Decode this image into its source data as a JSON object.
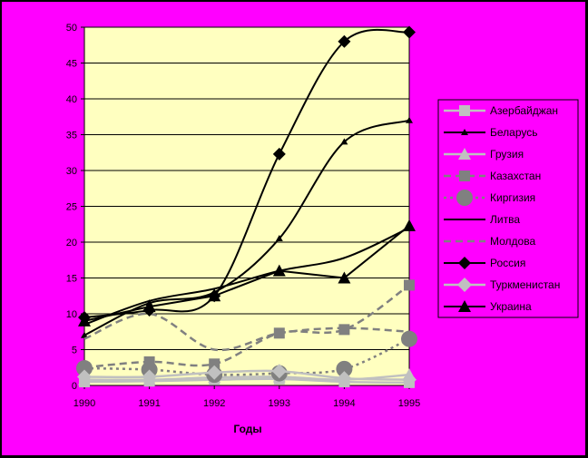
{
  "chart_data": {
    "type": "line",
    "title": "",
    "xlabel": "Годы",
    "ylabel": "",
    "ylim": [
      0,
      50
    ],
    "yticks": [
      0,
      5,
      10,
      15,
      20,
      25,
      30,
      35,
      40,
      45,
      50
    ],
    "categories": [
      "1990",
      "1991",
      "1992",
      "1993",
      "1994",
      "1995"
    ],
    "grid": "horizontal",
    "legend_position": "right",
    "plot_background": "#ffffc0",
    "page_background": "#ff00ff",
    "series": [
      {
        "name": "Азербайджан",
        "values": [
          0.5,
          0.6,
          0.8,
          0.9,
          0.5,
          0.4
        ],
        "color": "#c0c0c0",
        "dash": "solid",
        "marker": "square",
        "width": 2.5,
        "smooth": true
      },
      {
        "name": "Беларусь",
        "values": [
          7.0,
          11.5,
          13.0,
          20.5,
          34.0,
          37.0
        ],
        "color": "#000000",
        "dash": "solid",
        "marker": "tri-small",
        "width": 2,
        "smooth": true
      },
      {
        "name": "Грузия",
        "values": [
          0.8,
          0.8,
          1.1,
          1.2,
          0.8,
          1.5
        ],
        "color": "#c0c0c0",
        "dash": "solid",
        "marker": "triangle",
        "width": 2.5,
        "smooth": true
      },
      {
        "name": "Казахстан",
        "values": [
          2.5,
          3.3,
          3.0,
          7.3,
          7.8,
          14.0
        ],
        "color": "#808080",
        "dash": "dashed",
        "marker": "square",
        "width": 2.5,
        "smooth": true
      },
      {
        "name": "Киргизия",
        "values": [
          2.4,
          2.2,
          1.5,
          1.7,
          2.3,
          6.5
        ],
        "color": "#808080",
        "dash": "dotted",
        "marker": "circle",
        "width": 2.5,
        "smooth": true
      },
      {
        "name": "Литва",
        "values": [
          8.5,
          11.8,
          13.5,
          16.0,
          17.8,
          22.0
        ],
        "color": "#000000",
        "dash": "solid",
        "marker": "none",
        "width": 2,
        "smooth": true
      },
      {
        "name": "Молдова",
        "values": [
          6.5,
          10.0,
          5.0,
          7.3,
          8.0,
          7.5
        ],
        "color": "#808080",
        "dash": "dashed",
        "marker": "none",
        "width": 2.5,
        "smooth": true
      },
      {
        "name": "Россия",
        "values": [
          9.5,
          10.5,
          12.5,
          32.3,
          48.0,
          49.3
        ],
        "color": "#000000",
        "dash": "solid",
        "marker": "diamond",
        "width": 2,
        "smooth": true
      },
      {
        "name": "Туркменистан",
        "values": [
          1.2,
          1.2,
          1.8,
          2.0,
          1.0,
          0.8
        ],
        "color": "#c0c0c0",
        "dash": "solid",
        "marker": "diamond-light",
        "width": 2.5,
        "smooth": true
      },
      {
        "name": "Украина",
        "values": [
          9.0,
          11.0,
          12.5,
          16.0,
          15.0,
          22.3
        ],
        "color": "#000000",
        "dash": "solid",
        "marker": "triangle",
        "width": 2,
        "smooth": false
      }
    ]
  }
}
